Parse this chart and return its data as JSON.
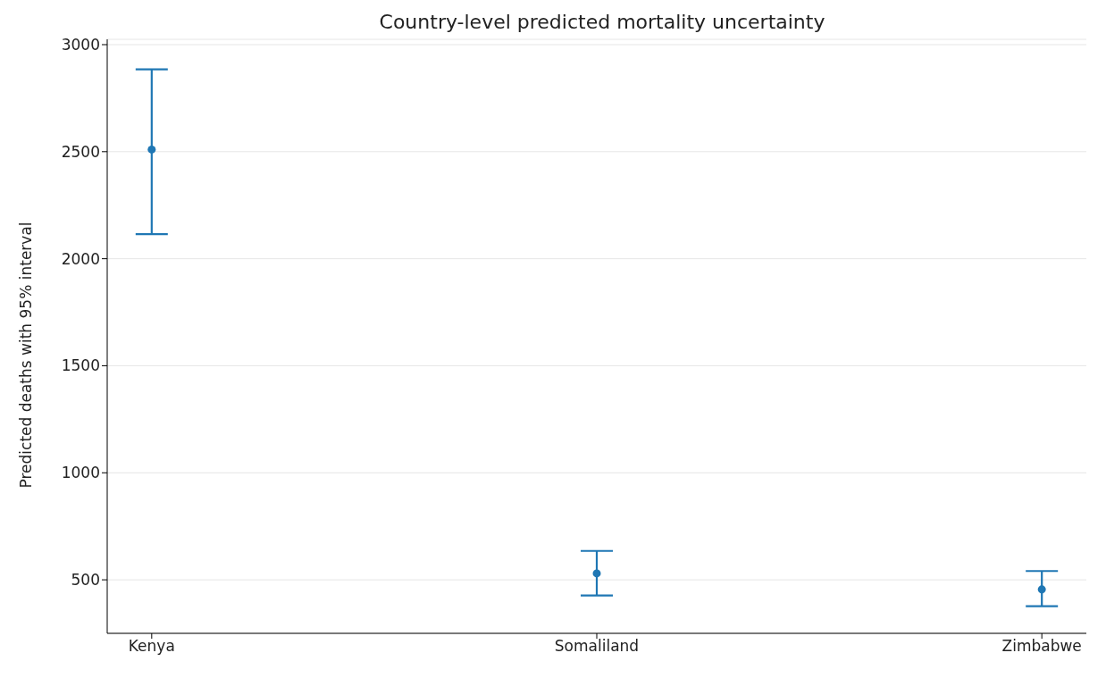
{
  "chart_data": {
    "type": "scatter",
    "title": "Country-level predicted mortality uncertainty",
    "ylabel": "Predicted deaths with 95% interval",
    "categories": [
      "Kenya",
      "Somaliland",
      "Zimbabwe"
    ],
    "series": [
      {
        "color": "#1f77b4",
        "values": [
          2510,
          530,
          455
        ],
        "errors": [
          [
            2115,
            2885
          ],
          [
            427,
            635
          ],
          [
            377,
            541
          ]
        ]
      }
    ],
    "ylim": [
      250,
      3025
    ],
    "yticks": [
      500,
      1000,
      1500,
      2000,
      2500,
      3000
    ],
    "grid": "y",
    "marker": "circle"
  }
}
